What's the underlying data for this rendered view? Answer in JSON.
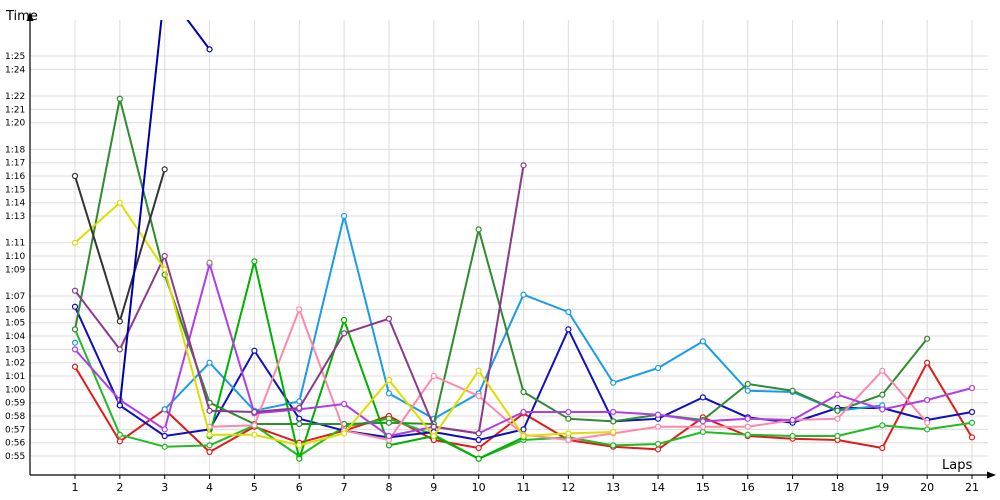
{
  "chart_data": {
    "type": "line",
    "xlabel": "Laps",
    "ylabel": "Time",
    "x": [
      1,
      2,
      3,
      4,
      5,
      6,
      7,
      8,
      9,
      10,
      11,
      12,
      13,
      14,
      15,
      16,
      17,
      18,
      19,
      20,
      21
    ],
    "ylim": [
      0.9083,
      1.4333
    ],
    "ytick_labels": [
      "0:55",
      "0:56",
      "0:57",
      "0:58",
      "0:59",
      "1:00",
      "1:01",
      "1:02",
      "1:03",
      "1:04",
      "1:05",
      "1:06",
      "1:07",
      "1:09",
      "1:10",
      "1:11",
      "1:13",
      "1:14",
      "1:15",
      "1:16",
      "1:17",
      "1:18",
      "1:20",
      "1:21",
      "1:22",
      "1:24",
      "1:25"
    ],
    "ytick_values": [
      0.9167,
      0.9333,
      0.95,
      0.9667,
      0.9833,
      1.0,
      1.0167,
      1.0333,
      1.05,
      1.0667,
      1.0833,
      1.1,
      1.1167,
      1.15,
      1.1667,
      1.1833,
      1.2167,
      1.2333,
      1.25,
      1.2667,
      1.2833,
      1.3,
      1.3333,
      1.35,
      1.3667,
      1.4,
      1.4167
    ],
    "xtick_labels": [
      "1",
      "2",
      "3",
      "4",
      "5",
      "6",
      "7",
      "8",
      "9",
      "10",
      "11",
      "12",
      "13",
      "14",
      "15",
      "16",
      "17",
      "18",
      "19",
      "20",
      "21"
    ],
    "grid": true,
    "series": [
      {
        "color": "#e01b1b",
        "values": [
          1.0283,
          0.935,
          0.975,
          0.9217,
          0.9533,
          0.9333,
          0.9483,
          0.9667,
          0.9367,
          0.9267,
          0.97,
          0.9367,
          0.9283,
          0.925,
          0.965,
          0.9417,
          0.9383,
          0.9367,
          0.9267,
          1.0333,
          0.94
        ]
      },
      {
        "color": "#22bb22",
        "values": [
          1.075,
          0.9433,
          0.9283,
          0.93,
          0.955,
          0.9167,
          0.9533,
          0.9633,
          0.9433,
          0.9133,
          0.9367,
          0.94,
          0.93,
          0.9317,
          0.9467,
          0.9433,
          0.9417,
          0.9417,
          0.955,
          0.95,
          0.9583
        ]
      },
      {
        "color": "#1010bb",
        "values": [
          1.1033,
          0.98,
          0.9417,
          0.95,
          1.0483,
          0.9633,
          0.9483,
          0.94,
          0.9467,
          0.9367,
          0.95,
          1.075,
          0.96,
          0.9633,
          0.99,
          0.965,
          0.9583,
          0.9767,
          0.9767,
          0.9617,
          0.9717
        ]
      },
      {
        "color": "#1b9be8",
        "values": [
          1.0583,
          null,
          0.975,
          1.0333,
          0.9733,
          0.985,
          1.2167,
          0.995,
          0.9633,
          0.995,
          1.1183,
          1.0967,
          1.0083,
          1.0267,
          1.06,
          0.9983,
          0.9967,
          0.9733,
          0.98,
          null,
          null
        ]
      },
      {
        "color": "#2e8b2e",
        "values": [
          1.075,
          1.3633,
          1.1433,
          0.9833,
          0.9567,
          0.9567,
          0.9567,
          0.9583,
          0.9567,
          1.2,
          0.9967,
          0.9633,
          0.96,
          0.9683,
          0.9617,
          1.0067,
          0.9983,
          0.9733,
          0.9933,
          1.0633,
          null
        ]
      },
      {
        "color": "#00b000",
        "values": [
          null,
          null,
          null,
          0.9417,
          1.16,
          0.9133,
          1.0867,
          0.93,
          0.9417,
          0.9133,
          0.94,
          null,
          null,
          null,
          null,
          null,
          null,
          null,
          null,
          null,
          null
        ]
      },
      {
        "color": "#ff88aa",
        "values": [
          1.05,
          null,
          null,
          0.9533,
          0.955,
          1.1,
          0.9483,
          0.9367,
          1.0167,
          0.9917,
          0.9433,
          0.9367,
          0.945,
          0.9533,
          0.9533,
          0.9533,
          0.9617,
          0.9633,
          1.0233,
          0.9583,
          null
        ]
      },
      {
        "color": "#b03ee8",
        "values": [
          1.05,
          0.9867,
          0.95,
          1.1567,
          0.97,
          0.975,
          0.9817,
          0.9417,
          0.9533,
          0.945,
          0.9717,
          0.9717,
          0.9717,
          0.9683,
          0.96,
          0.9633,
          0.9617,
          0.9933,
          0.975,
          0.9867,
          1.0017
        ]
      },
      {
        "color": "#8b3a8b",
        "values": [
          1.1233,
          1.05,
          1.1667,
          0.9733,
          0.9717,
          0.9767,
          1.07,
          1.0883,
          0.9533,
          0.945,
          1.28,
          null,
          null,
          null,
          null,
          null,
          null,
          null,
          null,
          null,
          null
        ]
      },
      {
        "color": "#dddd00",
        "values": [
          1.1833,
          1.2333,
          1.15,
          0.9433,
          0.9433,
          0.93,
          0.945,
          1.0117,
          0.9417,
          1.0233,
          0.9417,
          0.945,
          0.9467,
          null,
          null,
          null,
          null,
          null,
          null,
          null,
          null
        ]
      },
      {
        "color": "#333333",
        "values": [
          1.2667,
          1.085,
          1.275,
          null,
          null,
          null,
          null,
          null,
          null,
          null,
          null,
          null,
          null,
          null,
          null,
          null,
          null,
          null,
          null,
          null,
          null
        ]
      },
      {
        "color": "#0000aa",
        "values": [
          null,
          0.98,
          1.5,
          1.425,
          null,
          null,
          null,
          null,
          null,
          null,
          null,
          null,
          null,
          null,
          null,
          null,
          null,
          null,
          null,
          null,
          null
        ]
      },
      {
        "color": "#888888",
        "values": [
          null,
          null,
          null,
          1.1583,
          null,
          null,
          null,
          null,
          null,
          null,
          null,
          null,
          null,
          null,
          null,
          null,
          null,
          null,
          null,
          null,
          null
        ]
      }
    ]
  }
}
